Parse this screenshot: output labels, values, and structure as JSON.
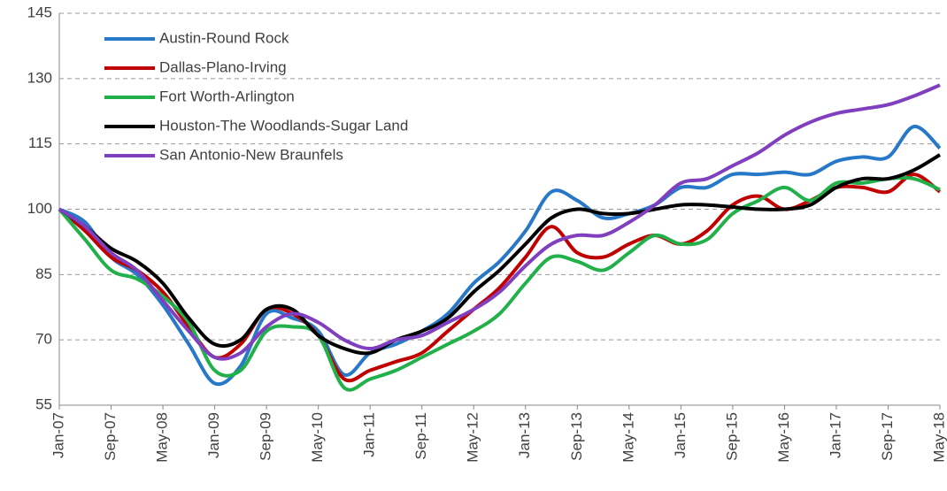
{
  "chart_data": {
    "type": "line",
    "categories": [
      "Jan-07",
      null,
      "Sep-07",
      null,
      "May-08",
      null,
      "Jan-09",
      null,
      "Sep-09",
      null,
      "May-10",
      null,
      "Jan-11",
      null,
      "Sep-11",
      null,
      "May-12",
      null,
      "Jan-13",
      null,
      "Sep-13",
      null,
      "May-14",
      null,
      "Jan-15",
      null,
      "Sep-15",
      null,
      "May-16",
      null,
      "Jan-17",
      null,
      "Sep-17",
      null,
      "May-18"
    ],
    "series": [
      {
        "name": "Austin-Round Rock",
        "color": "#2878c8",
        "values": [
          100,
          97,
          89,
          85,
          78,
          69,
          60,
          64,
          76,
          75,
          72,
          62,
          67,
          69,
          72,
          76,
          83,
          88,
          95,
          104,
          102,
          98,
          99,
          101,
          105,
          105,
          108,
          108,
          108.5,
          108,
          111,
          112,
          112,
          119,
          114
        ]
      },
      {
        "name": "Dallas-Plano-Irving",
        "color": "#c00000",
        "values": [
          100,
          95,
          89,
          86,
          81,
          73,
          66,
          69,
          77,
          76,
          71,
          61,
          63,
          65,
          67,
          72,
          77,
          82,
          89,
          96,
          90,
          89,
          92,
          94,
          92,
          95,
          101,
          103,
          100,
          102,
          105,
          105,
          104,
          108,
          104
        ]
      },
      {
        "name": "Fort Worth-Arlington",
        "color": "#22b04a",
        "values": [
          100,
          93,
          86,
          84,
          80,
          74,
          63,
          63,
          72,
          73,
          71,
          59,
          61,
          63,
          66,
          69,
          72,
          76,
          83,
          89,
          88,
          86,
          90,
          94,
          92,
          93,
          99,
          102,
          105,
          102,
          106,
          106,
          107,
          107,
          104.5
        ]
      },
      {
        "name": "Houston-The Woodlands-Sugar Land",
        "color": "#000000",
        "values": [
          100,
          96,
          91,
          88,
          83,
          75,
          69,
          70,
          77,
          77,
          71,
          68,
          67,
          70,
          72,
          75,
          81,
          86,
          92,
          98,
          100,
          99,
          99,
          100,
          101,
          101,
          100.5,
          100,
          100,
          101,
          105,
          107,
          107,
          109,
          112.5
        ]
      },
      {
        "name": "San Antonio-New Braunfels",
        "color": "#7f3fbf",
        "values": [
          100,
          96,
          90,
          86,
          79,
          72,
          66,
          67,
          73,
          76,
          74,
          70,
          68,
          70,
          71,
          74,
          77,
          81,
          87,
          92,
          94,
          94,
          97,
          101,
          106,
          107,
          110,
          113,
          117,
          120,
          122,
          123,
          124,
          126,
          128.5
        ]
      }
    ],
    "ylim": [
      55,
      145
    ],
    "yticks": [
      55,
      70,
      85,
      100,
      115,
      130,
      145
    ],
    "grid": true,
    "legend": "upper left"
  }
}
